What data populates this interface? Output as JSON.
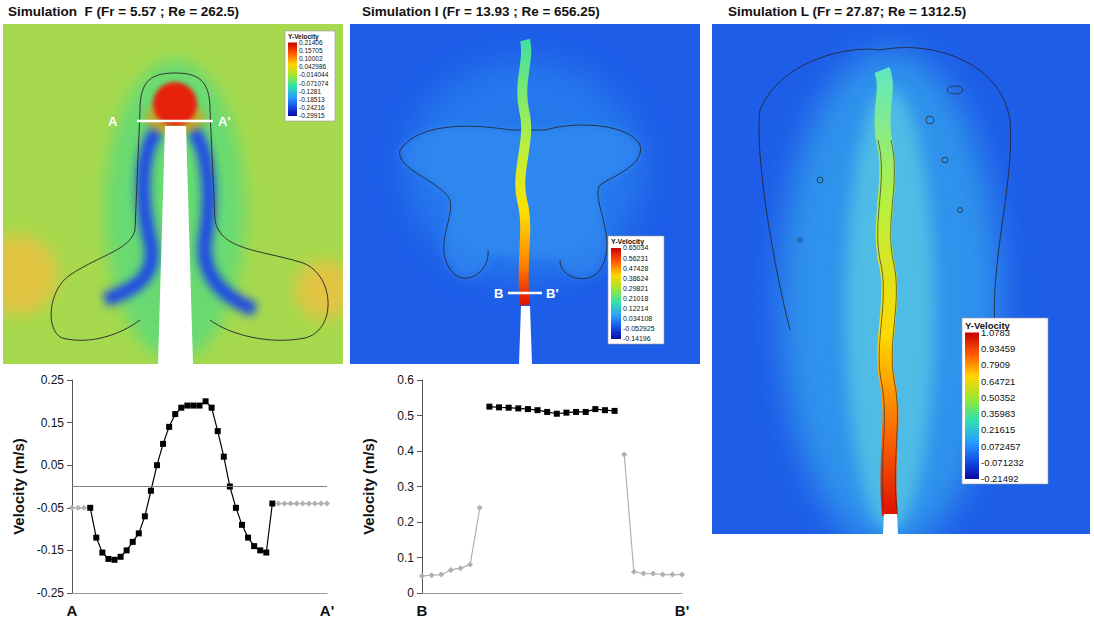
{
  "panels": [
    {
      "title": "Simulation  F (Fr = 5.57 ; Re = 262.5)",
      "section": [
        "A",
        "A'"
      ],
      "colorbar": {
        "title": "Y-Velocity",
        "ticks": [
          0.21406,
          0.15705,
          0.10002,
          0.042986,
          -0.014044,
          -0.071074,
          -0.1281,
          -0.18513,
          -0.24216,
          -0.29915
        ]
      }
    },
    {
      "title": "Simulation I (Fr = 13.93 ; Re = 656.25)",
      "section": [
        "B",
        "B'"
      ],
      "colorbar": {
        "title": "Y-Velocity",
        "ticks": [
          0.65034,
          0.56231,
          0.47428,
          0.38624,
          0.29821,
          0.21018,
          0.12214,
          0.034108,
          -0.052925,
          -0.14196
        ]
      }
    },
    {
      "title": "Simulation L (Fr = 27.87; Re = 1312.5)",
      "colorbar": {
        "title": "Y-Velocity",
        "ticks": [
          1.0783,
          0.93459,
          0.7909,
          0.64721,
          0.50352,
          0.35983,
          0.21615,
          0.072457,
          -0.071232,
          -0.21492
        ]
      }
    }
  ],
  "chart_data": [
    {
      "type": "line",
      "ylabel": "Velocity (m/s)",
      "ylim": [
        -0.25,
        0.25
      ],
      "yticks": [
        -0.25,
        -0.15,
        -0.05,
        0.05,
        0.15,
        0.25
      ],
      "grid": false,
      "hline": 0,
      "categories": [
        "A",
        null,
        null,
        null,
        null,
        null,
        null,
        null,
        null,
        null,
        null,
        null,
        null,
        null,
        null,
        null,
        null,
        null,
        null,
        null,
        null,
        null,
        null,
        null,
        null,
        null,
        null,
        null,
        null,
        null,
        null,
        null,
        null,
        null,
        null,
        null,
        null,
        null,
        null,
        null,
        null,
        null,
        "A'"
      ],
      "series": [
        {
          "color": "#b0b0b0",
          "marker": "diamond",
          "values": [
            -0.05,
            -0.05,
            -0.05,
            null,
            null,
            null,
            null,
            null,
            null,
            null,
            null,
            null,
            null,
            null,
            null,
            null,
            null,
            null,
            null,
            null,
            null,
            null,
            null,
            null,
            null,
            null,
            null,
            null,
            null,
            null,
            null,
            null,
            null,
            null,
            -0.04,
            -0.04,
            -0.04,
            -0.04,
            -0.04,
            -0.04,
            -0.04,
            -0.04,
            -0.04
          ]
        },
        {
          "color": "#000000",
          "marker": "square",
          "values": [
            null,
            null,
            null,
            -0.05,
            -0.12,
            -0.155,
            -0.17,
            -0.172,
            -0.165,
            -0.15,
            -0.13,
            -0.11,
            -0.07,
            -0.01,
            0.05,
            0.1,
            0.14,
            0.17,
            0.185,
            0.19,
            0.19,
            0.19,
            0.2,
            0.185,
            0.13,
            0.07,
            0.0,
            -0.05,
            -0.09,
            -0.12,
            -0.14,
            -0.15,
            -0.155,
            -0.04,
            null,
            null,
            null,
            null,
            null,
            null,
            null,
            null,
            null
          ]
        }
      ]
    },
    {
      "type": "line",
      "ylabel": "Velocity (m/s)",
      "ylim": [
        0,
        0.6
      ],
      "yticks": [
        0,
        0.1,
        0.2,
        0.3,
        0.4,
        0.5,
        0.6
      ],
      "grid": false,
      "categories": [
        "B",
        null,
        null,
        null,
        null,
        null,
        null,
        null,
        null,
        null,
        null,
        null,
        null,
        null,
        null,
        null,
        null,
        null,
        null,
        null,
        null,
        null,
        null,
        null,
        null,
        null,
        null,
        "B'"
      ],
      "series": [
        {
          "color": "#b0b0b0",
          "marker": "diamond",
          "values": [
            0.048,
            0.05,
            0.052,
            0.065,
            0.07,
            0.08,
            0.24,
            null,
            null,
            null,
            null,
            null,
            null,
            null,
            null,
            null,
            null,
            null,
            null,
            null,
            null,
            0.39,
            0.06,
            0.055,
            0.055,
            0.052,
            0.052,
            0.052
          ]
        },
        {
          "color": "#000000",
          "marker": "square",
          "values": [
            null,
            null,
            null,
            null,
            null,
            null,
            null,
            0.525,
            0.523,
            0.522,
            0.52,
            0.518,
            0.515,
            0.51,
            0.505,
            0.508,
            0.51,
            0.51,
            0.518,
            0.515,
            0.513,
            null,
            null,
            null,
            null,
            null,
            null,
            null
          ]
        }
      ]
    }
  ]
}
